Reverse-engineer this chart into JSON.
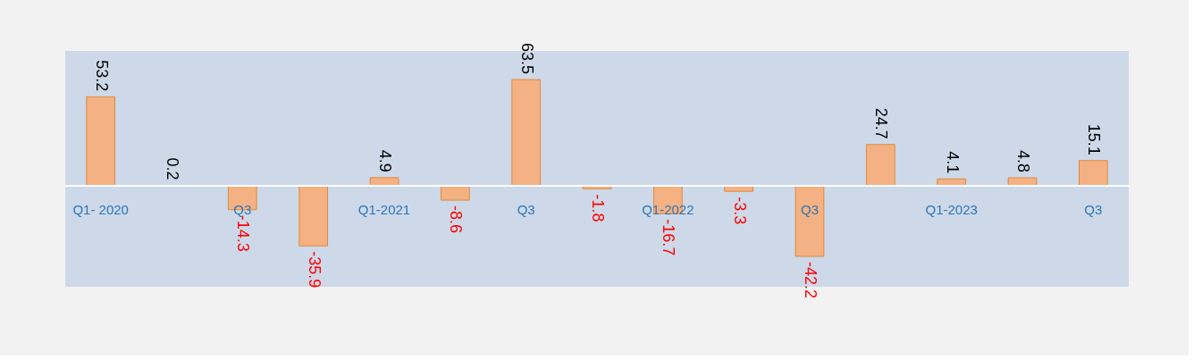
{
  "chart_data": {
    "type": "bar",
    "categories": [
      "Q1- 2020",
      null,
      "Q3",
      null,
      "Q1-2021",
      null,
      "Q3",
      null,
      "Q1-2022",
      null,
      "Q3",
      null,
      "Q1-2023",
      null,
      "Q3"
    ],
    "values": [
      53.2,
      0.2,
      -14.3,
      -35.9,
      4.9,
      -8.6,
      63.5,
      -1.8,
      -16.7,
      -3.3,
      -42.2,
      24.7,
      4.1,
      4.8,
      15.1
    ],
    "color": "#f4b183",
    "data_labels": true
  }
}
